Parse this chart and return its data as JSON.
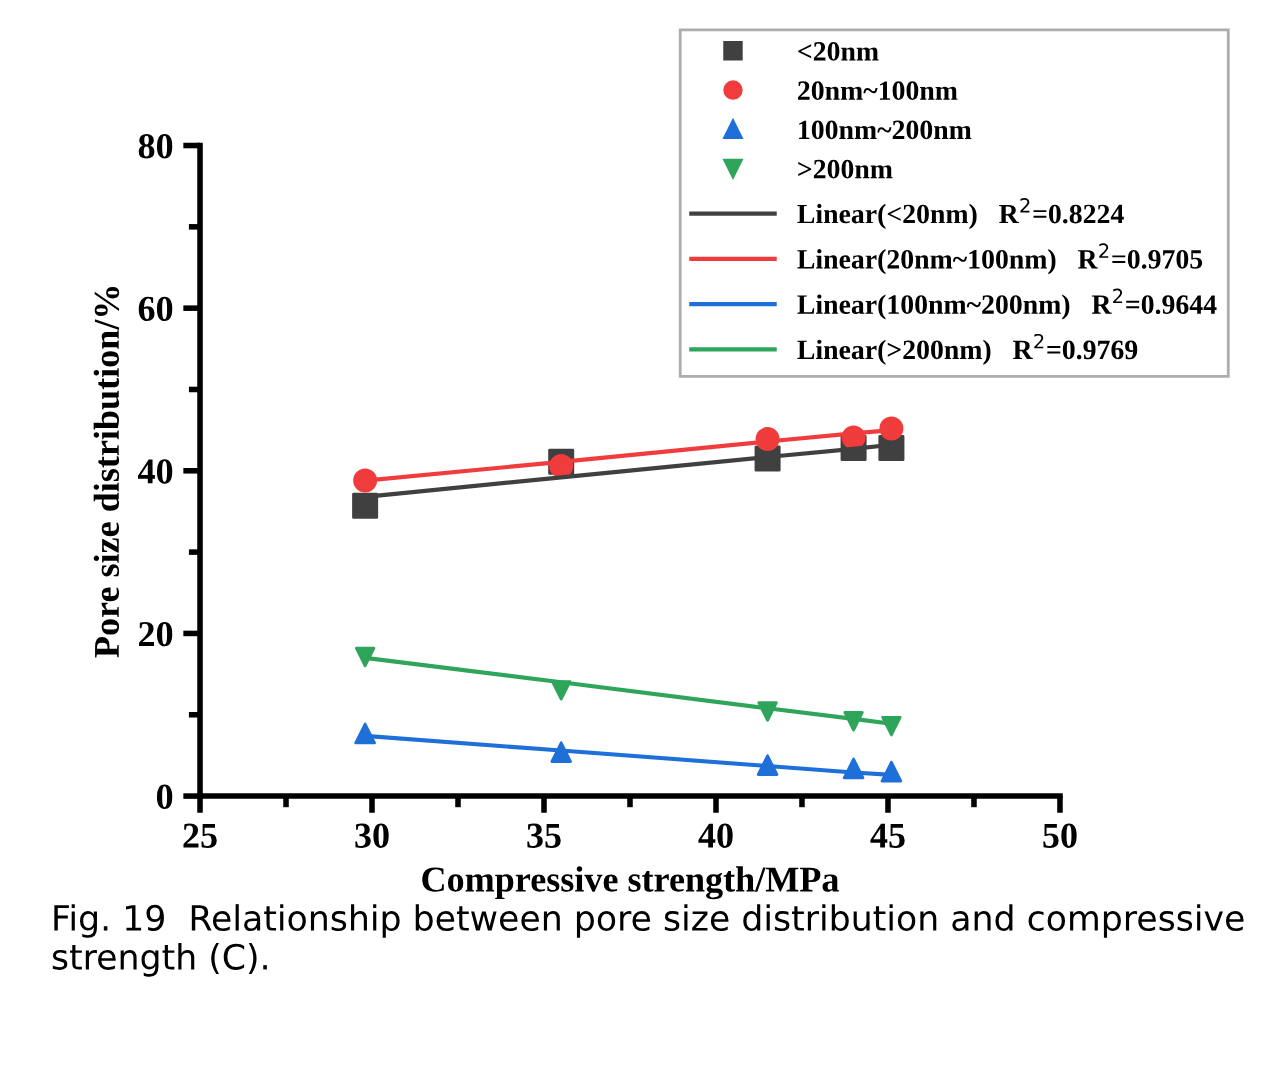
{
  "chart_data": {
    "type": "scatter",
    "xlabel": "Compressive strength/MPa",
    "ylabel": "Pore size distribution/%",
    "xlim": [
      25,
      50
    ],
    "xticks": [
      25,
      30,
      35,
      40,
      45,
      50
    ],
    "ylim": [
      0,
      80
    ],
    "yticks": [
      0,
      20,
      40,
      60,
      80
    ],
    "grid": false,
    "legend": "top right",
    "x": [
      29.8,
      35.5,
      41.5,
      44.0,
      45.1
    ],
    "series": [
      {
        "name": "<20nm",
        "color": "#404040",
        "marker": "square",
        "values": [
          35.7,
          41.1,
          41.5,
          42.8,
          42.8
        ]
      },
      {
        "name": "20nm~100nm",
        "color": "#f03c3c",
        "marker": "circle",
        "values": [
          38.8,
          40.6,
          43.9,
          44.1,
          45.2
        ]
      },
      {
        "name": "100nm~200nm",
        "color": "#1f6fd8",
        "marker": "triangle",
        "values": [
          7.7,
          5.4,
          3.8,
          3.4,
          3.0
        ]
      },
      {
        "name": ">200nm",
        "color": "#2ea55a",
        "marker": "triangle_down",
        "values": [
          17.1,
          13.0,
          10.4,
          9.2,
          8.6
        ]
      },
      {
        "name": "Linear(<20nm)   R$^{2}$=0.8224",
        "type": "line",
        "color": "#404040",
        "values": [
          36.8,
          39.2,
          41.7,
          42.7,
          43.2
        ]
      },
      {
        "name": "Linear(20nm~100nm)   R$^{2}$=0.9705",
        "type": "line",
        "color": "#f03c3c",
        "values": [
          38.8,
          41.1,
          43.6,
          44.6,
          45.0
        ]
      },
      {
        "name": "Linear(100nm~200nm)   R$^{2}$=0.9644",
        "type": "line",
        "color": "#1f6fd8",
        "values": [
          7.4,
          5.6,
          3.7,
          2.9,
          2.6
        ]
      },
      {
        "name": "Linear(>200nm)   R$^{2}$=0.9769",
        "type": "line",
        "color": "#2ea55a",
        "values": [
          17.0,
          14.0,
          10.8,
          9.5,
          8.9
        ]
      }
    ],
    "annotations": [
      "Fig. 19  Relationship between pore size distribution and compressive strength (C)."
    ]
  }
}
